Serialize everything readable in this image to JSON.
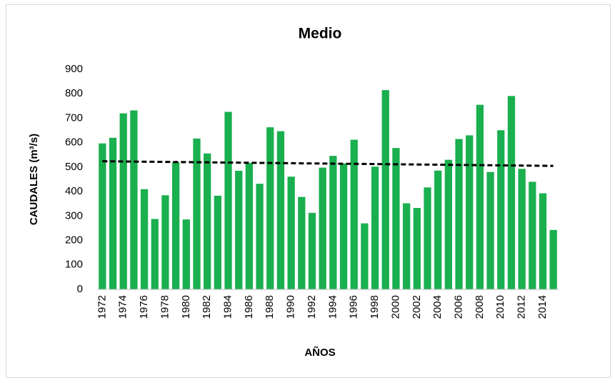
{
  "chart_data": {
    "type": "bar",
    "title": "Medio",
    "x_label": "AÑOS",
    "y_label": "CAUDALES (m³/s)",
    "categories": [
      "1972",
      null,
      "1974",
      null,
      "1976",
      null,
      "1978",
      null,
      "1980",
      null,
      "1982",
      null,
      "1984",
      null,
      "1986",
      null,
      "1988",
      null,
      "1990",
      null,
      "1992",
      null,
      "1994",
      null,
      "1996",
      null,
      "1998",
      null,
      "2000",
      null,
      "2002",
      null,
      "2004",
      null,
      "2006",
      null,
      "2008",
      null,
      "2010",
      null,
      "2012",
      null,
      "2014",
      null
    ],
    "values": [
      597,
      620,
      720,
      732,
      410,
      288,
      385,
      520,
      286,
      617,
      556,
      383,
      726,
      485,
      517,
      432,
      663,
      647,
      461,
      378,
      313,
      498,
      546,
      515,
      612,
      270,
      502,
      815,
      578,
      352,
      333,
      417,
      486,
      530,
      615,
      630,
      755,
      480,
      651,
      791,
      493,
      440,
      393,
      243
    ],
    "color": "#1aaf4f",
    "trend": {
      "start": 524,
      "end": 505,
      "color": "#000000",
      "style": "dashed"
    },
    "ylim": [
      0,
      900
    ],
    "yticks": [
      0,
      100,
      200,
      300,
      400,
      500,
      600,
      700,
      800,
      900
    ],
    "grid": false
  }
}
